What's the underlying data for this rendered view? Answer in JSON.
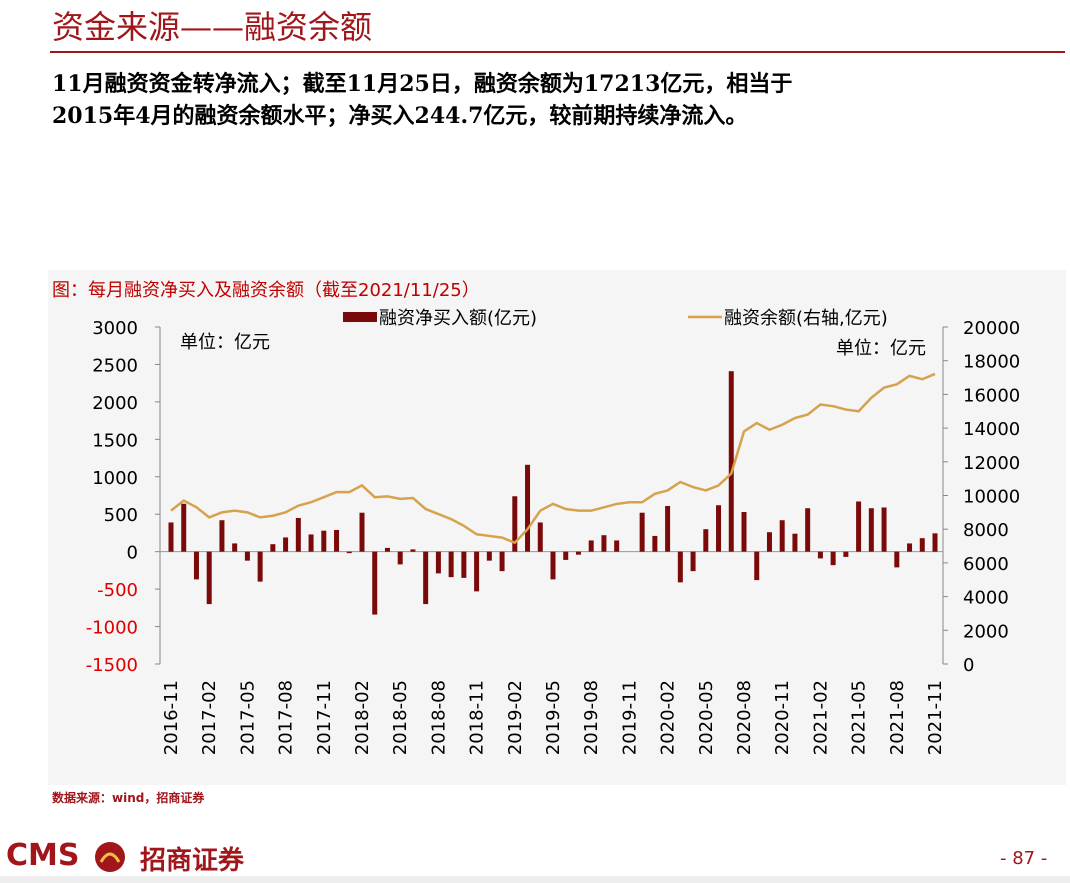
{
  "header": {
    "title": "资金来源——融资余额"
  },
  "summary": [
    "11月融资资金转净流入；截至11月25日，融资余额为17213亿元，相当于",
    "2015年4月的融资余额水平；净买入244.7亿元，较前期持续净流入。"
  ],
  "chart_data": {
    "type": "combo",
    "title": "图：每月融资净买入及融资余额（截至2021/11/25）",
    "unit_left": "单位：亿元",
    "unit_right": "单位：亿元",
    "categories": [
      "2016-11",
      null,
      null,
      "2017-02",
      null,
      null,
      "2017-05",
      null,
      null,
      "2017-08",
      null,
      null,
      "2017-11",
      null,
      null,
      "2018-02",
      null,
      null,
      "2018-05",
      null,
      null,
      "2018-08",
      null,
      null,
      "2018-11",
      null,
      null,
      "2019-02",
      null,
      null,
      "2019-05",
      null,
      null,
      "2019-08",
      null,
      null,
      "2019-11",
      null,
      null,
      "2020-02",
      null,
      null,
      "2020-05",
      null,
      null,
      "2020-08",
      null,
      null,
      "2020-11",
      null,
      null,
      "2021-02",
      null,
      null,
      "2021-05",
      null,
      null,
      "2021-08",
      null,
      null,
      "2021-11"
    ],
    "series": [
      {
        "name": "融资净买入额(亿元)",
        "type": "bar",
        "color": "#7a0a0a",
        "values": [
          390,
          640,
          -370,
          -700,
          420,
          110,
          -120,
          -400,
          100,
          190,
          450,
          230,
          280,
          290,
          -20,
          520,
          -840,
          50,
          -170,
          30,
          -700,
          -290,
          -340,
          -350,
          -530,
          -120,
          -260,
          740,
          1160,
          390,
          -370,
          -110,
          -40,
          150,
          220,
          150,
          0,
          520,
          210,
          610,
          -410,
          -260,
          300,
          620,
          2410,
          530,
          -380,
          260,
          420,
          240,
          580,
          -90,
          -180,
          -70,
          670,
          580,
          590,
          -210,
          110,
          180,
          245
        ]
      },
      {
        "name": "融资余额(右轴,亿元)",
        "type": "line",
        "axis": "y2",
        "color": "#d6a24c",
        "values": [
          9100,
          9700,
          9300,
          8700,
          9000,
          9100,
          9000,
          8700,
          8800,
          9000,
          9400,
          9600,
          9900,
          10200,
          10200,
          10600,
          9900,
          9950,
          9800,
          9850,
          9200,
          8900,
          8600,
          8200,
          7700,
          7600,
          7500,
          7200,
          8000,
          9100,
          9500,
          9200,
          9100,
          9100,
          9300,
          9500,
          9600,
          9600,
          10100,
          10300,
          10800,
          10500,
          10300,
          10600,
          11300,
          13800,
          14300,
          13900,
          14200,
          14600,
          14800,
          15400,
          15300,
          15100,
          15000,
          15800,
          16400,
          16600,
          17100,
          16900,
          17213
        ]
      }
    ],
    "ylim": [
      -1500,
      3000
    ],
    "yticks": [
      -1500,
      -1000,
      -500,
      0,
      500,
      1000,
      1500,
      2000,
      2500,
      3000
    ],
    "negative_tick_color": "#e00000",
    "y2lim": [
      0,
      20000
    ],
    "y2ticks": [
      0,
      2000,
      4000,
      6000,
      8000,
      10000,
      12000,
      14000,
      16000,
      18000,
      20000
    ]
  },
  "source": "数据来源：wind，招商证券",
  "footer": {
    "logo": "CMS",
    "company": "招商证券",
    "page": "- 87 -"
  }
}
